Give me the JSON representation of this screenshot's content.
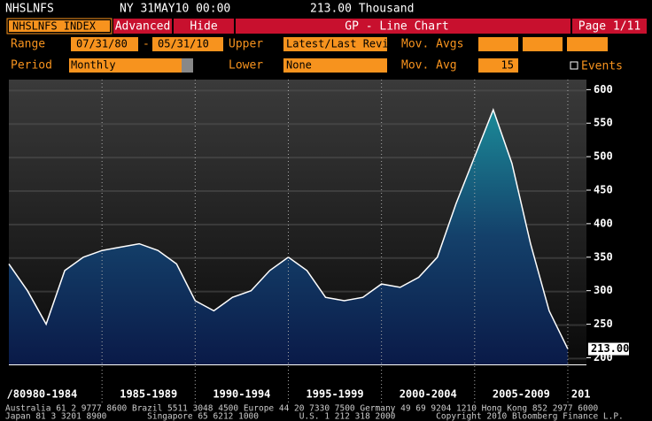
{
  "header": {
    "ticker": "NHSLNFS",
    "time": "NY 31MAY10 00:00",
    "value": "213.00 Thousand"
  },
  "toolbar": {
    "security": "NHSLNFS INDEX",
    "advanced": "Advanced",
    "hide": "Hide",
    "title": "GP - Line Chart",
    "page": "Page 1/11"
  },
  "settings": {
    "range_label": "Range",
    "start": "07/31/80",
    "dash": "-",
    "end": "05/31/10",
    "upper_label": "Upper",
    "upper": "Latest/Last Revi",
    "movavgs_label": "Mov. Avgs",
    "period_label": "Period",
    "period": "Monthly",
    "lower_label": "Lower",
    "lower": "None",
    "movavg_label": "Mov. Avg",
    "movavg": "15",
    "events": "Events"
  },
  "chart_data": {
    "type": "area",
    "x": [
      1980,
      1981,
      1982,
      1983,
      1984,
      1985,
      1986,
      1987,
      1988,
      1989,
      1990,
      1991,
      1992,
      1993,
      1994,
      1995,
      1996,
      1997,
      1998,
      1999,
      2000,
      2001,
      2002,
      2003,
      2004,
      2005,
      2006,
      2007,
      2008,
      2009,
      2010
    ],
    "series": [
      {
        "name": "NHSLNFS",
        "color": "#ffffff",
        "values": [
          340,
          300,
          250,
          330,
          350,
          360,
          365,
          370,
          360,
          340,
          285,
          270,
          290,
          300,
          330,
          350,
          330,
          290,
          285,
          290,
          310,
          305,
          320,
          350,
          430,
          500,
          570,
          490,
          370,
          270,
          213
        ]
      }
    ],
    "last_label": {
      "value": 213,
      "label": "213.00"
    },
    "xlim": [
      1980,
      2011
    ],
    "ylim": [
      190,
      615
    ],
    "yticks": [
      200,
      250,
      300,
      350,
      400,
      450,
      500,
      550,
      600
    ],
    "xgrid": [
      1985,
      1990,
      1995,
      2000,
      2005,
      2010
    ],
    "xticks": [
      {
        "value": 1980.4,
        "label": "/80"
      },
      {
        "value": 1982.3,
        "label": "980-1984"
      },
      {
        "value": 1987.5,
        "label": "1985-1989"
      },
      {
        "value": 1992.5,
        "label": "1990-1994"
      },
      {
        "value": 1997.5,
        "label": "1995-1999"
      },
      {
        "value": 2002.5,
        "label": "2000-2004"
      },
      {
        "value": 2007.5,
        "label": "2005-2009"
      },
      {
        "value": 2010.7,
        "label": "201"
      }
    ],
    "grid": true
  },
  "footer": {
    "line1": "Australia 61 2 9777 8600 Brazil 5511 3048 4500 Europe 44 20 7330 7500 Germany 49 69 9204 1210 Hong Kong 852 2977 6000",
    "line2": "Japan 81 3 3201 8900        Singapore 65 6212 1000        U.S. 1 212 318 2000        Copyright 2010 Bloomberg Finance L.P."
  }
}
